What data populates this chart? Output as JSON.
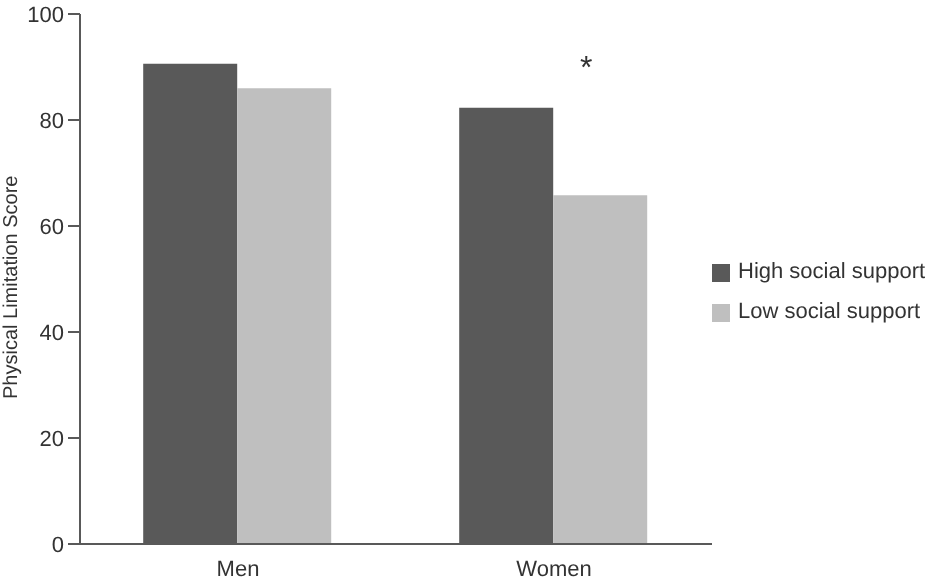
{
  "chart_data": {
    "type": "bar",
    "ylabel": "Physical Limitation Score",
    "categories": [
      "Men",
      "Women"
    ],
    "series": [
      {
        "name": "High social support",
        "color": "#595959",
        "values": [
          90.6,
          82.3
        ]
      },
      {
        "name": "Low social support",
        "color": "#bfbfbf",
        "values": [
          86,
          65.8
        ]
      }
    ],
    "ylim": [
      0,
      100
    ],
    "yticks": [
      0,
      20,
      40,
      60,
      80,
      100
    ],
    "grid": false,
    "legend": "right",
    "annotations": [
      "*"
    ]
  }
}
